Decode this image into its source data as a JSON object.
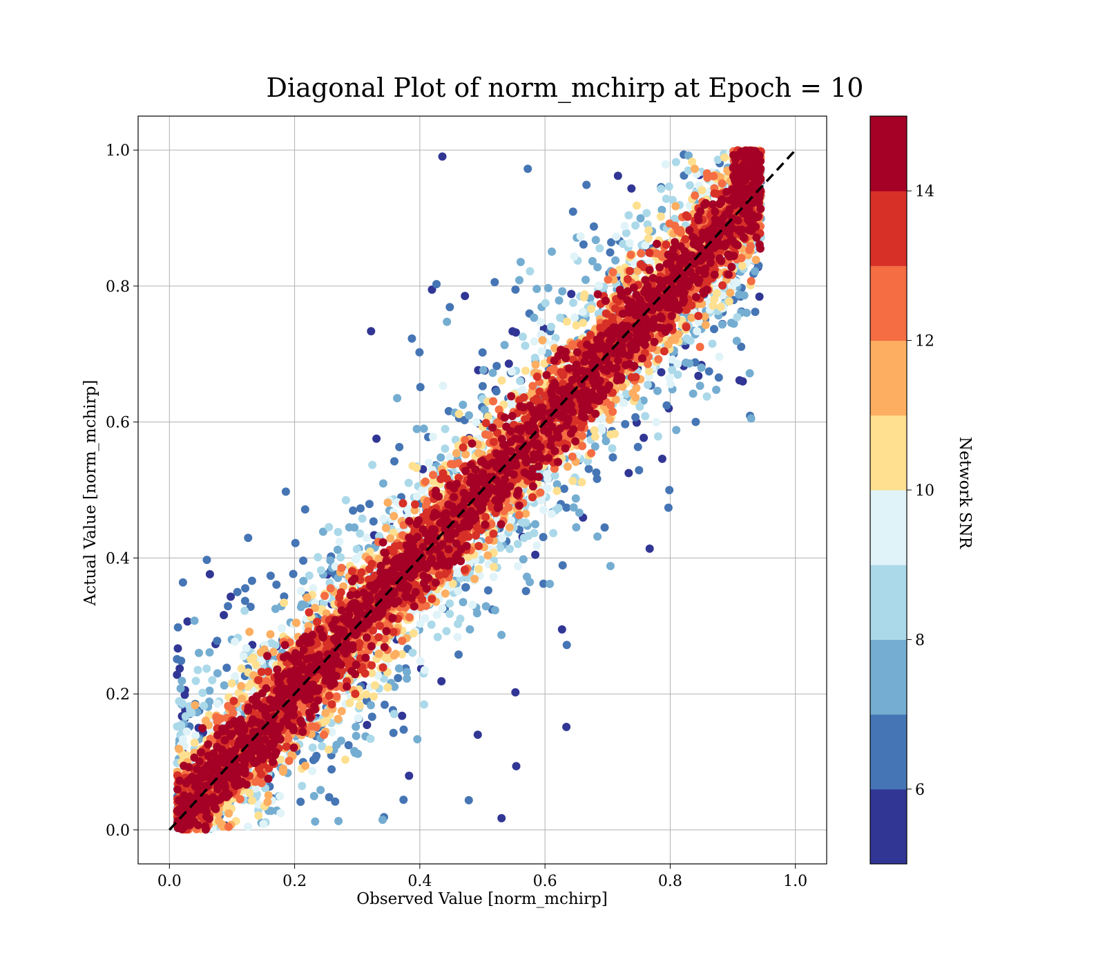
{
  "chart_data": {
    "type": "scatter",
    "title": "Diagonal Plot of norm_mchirp at Epoch = 10",
    "xlabel": "Observed Value [norm_mchirp]",
    "ylabel": "Actual Value [norm_mchirp]",
    "xlim": [
      -0.05,
      1.05
    ],
    "ylim": [
      -0.05,
      1.05
    ],
    "xticks": [
      "0.0",
      "0.2",
      "0.4",
      "0.6",
      "0.8",
      "1.0"
    ],
    "yticks": [
      "0.0",
      "0.2",
      "0.4",
      "0.6",
      "0.8",
      "1.0"
    ],
    "grid": true,
    "reference_line": {
      "style": "dashed",
      "color": "#000000",
      "from": [
        0,
        0
      ],
      "to": [
        1,
        1
      ]
    },
    "colorbar": {
      "label": "Network SNR",
      "range": [
        5,
        15
      ],
      "ticks": [
        "6",
        "8",
        "10",
        "12",
        "14"
      ],
      "tick_values": [
        6,
        8,
        10,
        12,
        14
      ],
      "colors": [
        "#313695",
        "#4575b4",
        "#74add1",
        "#abd9e9",
        "#e0f3f8",
        "#fee090",
        "#fdae61",
        "#f46d43",
        "#d73027",
        "#a50026"
      ]
    },
    "point_color_min": "#313695",
    "point_color_max": "#a50026",
    "description_of_points": "dense scatter of observed vs actual norm_mchirp; high-SNR points cluster tightly along the diagonal, low-SNR points spread widely; observed values capped near 0.94, actual values in [0, 1]"
  }
}
